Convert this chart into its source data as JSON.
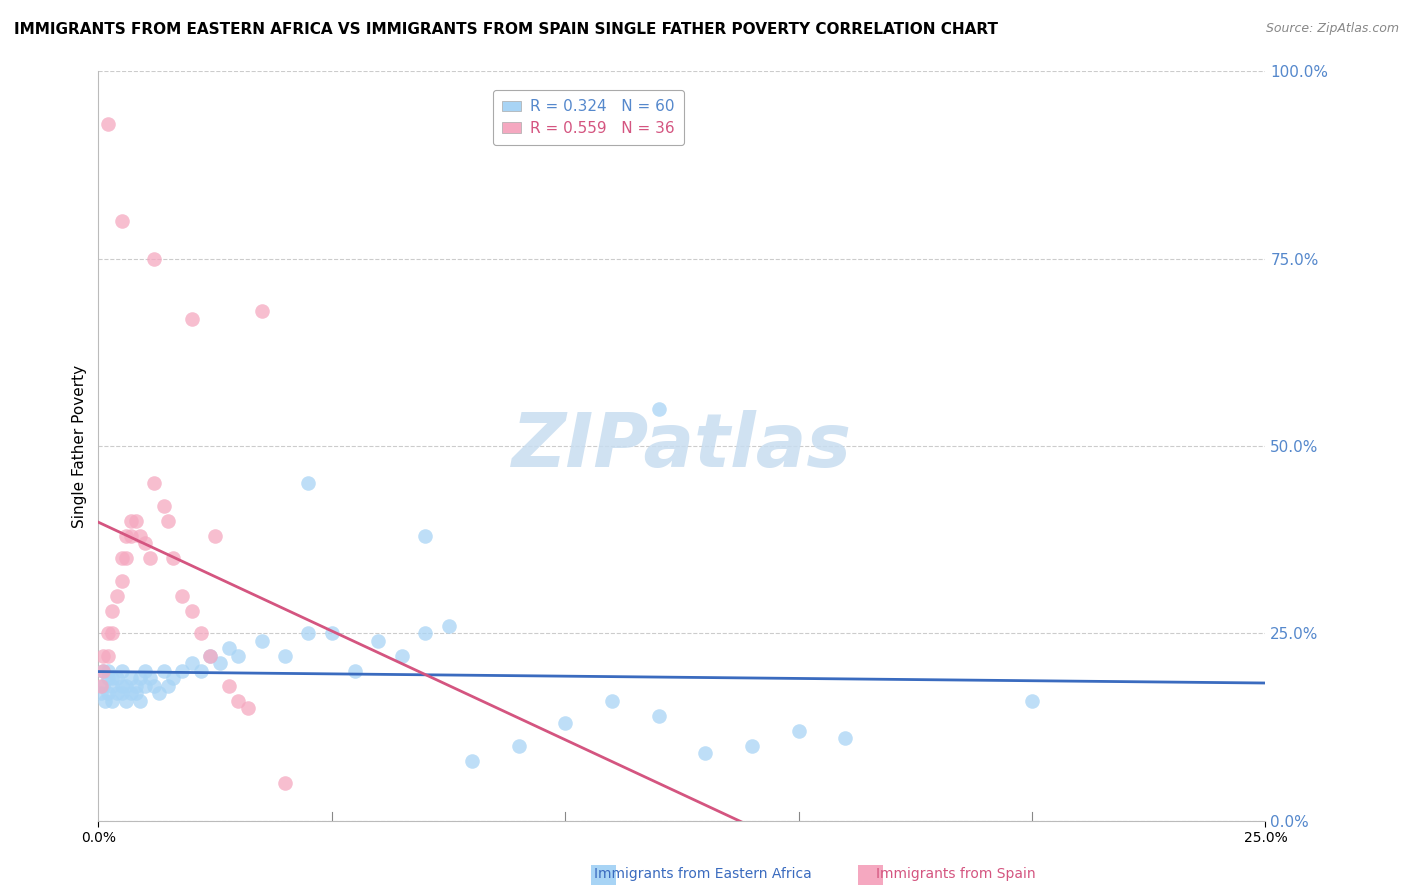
{
  "title": "IMMIGRANTS FROM EASTERN AFRICA VS IMMIGRANTS FROM SPAIN SINGLE FATHER POVERTY CORRELATION CHART",
  "source": "Source: ZipAtlas.com",
  "xlabel_blue": "Immigrants from Eastern Africa",
  "xlabel_pink": "Immigrants from Spain",
  "ylabel": "Single Father Poverty",
  "r_blue": 0.324,
  "n_blue": 60,
  "r_pink": 0.559,
  "n_pink": 36,
  "color_blue": "#a8d4f5",
  "color_pink": "#f5a8c0",
  "line_blue": "#3a6bbf",
  "line_pink": "#d45580",
  "tick_color": "#5588cc",
  "watermark_color": "#c8ddf0",
  "xlim": [
    0.0,
    0.25
  ],
  "ylim": [
    0.0,
    1.0
  ],
  "blue_x": [
    0.0005,
    0.001,
    0.001,
    0.0015,
    0.002,
    0.002,
    0.002,
    0.003,
    0.003,
    0.003,
    0.004,
    0.004,
    0.005,
    0.005,
    0.005,
    0.006,
    0.006,
    0.007,
    0.007,
    0.008,
    0.008,
    0.009,
    0.009,
    0.01,
    0.01,
    0.011,
    0.012,
    0.013,
    0.014,
    0.015,
    0.016,
    0.018,
    0.02,
    0.022,
    0.024,
    0.026,
    0.028,
    0.03,
    0.035,
    0.04,
    0.045,
    0.05,
    0.055,
    0.06,
    0.065,
    0.07,
    0.075,
    0.08,
    0.09,
    0.1,
    0.11,
    0.12,
    0.13,
    0.14,
    0.15,
    0.16,
    0.045,
    0.07,
    0.12,
    0.2
  ],
  "blue_y": [
    0.17,
    0.18,
    0.2,
    0.16,
    0.19,
    0.2,
    0.17,
    0.18,
    0.16,
    0.19,
    0.17,
    0.19,
    0.18,
    0.17,
    0.2,
    0.16,
    0.18,
    0.17,
    0.19,
    0.17,
    0.18,
    0.19,
    0.16,
    0.18,
    0.2,
    0.19,
    0.18,
    0.17,
    0.2,
    0.18,
    0.19,
    0.2,
    0.21,
    0.2,
    0.22,
    0.21,
    0.23,
    0.22,
    0.24,
    0.22,
    0.25,
    0.25,
    0.2,
    0.24,
    0.22,
    0.25,
    0.26,
    0.08,
    0.1,
    0.13,
    0.16,
    0.14,
    0.09,
    0.1,
    0.12,
    0.11,
    0.45,
    0.38,
    0.55,
    0.16
  ],
  "pink_x": [
    0.0005,
    0.001,
    0.001,
    0.002,
    0.002,
    0.003,
    0.003,
    0.004,
    0.005,
    0.005,
    0.006,
    0.006,
    0.007,
    0.007,
    0.008,
    0.009,
    0.01,
    0.011,
    0.012,
    0.014,
    0.015,
    0.016,
    0.018,
    0.02,
    0.022,
    0.024,
    0.025,
    0.028,
    0.03,
    0.032,
    0.002,
    0.005,
    0.012,
    0.02,
    0.035,
    0.04
  ],
  "pink_y": [
    0.18,
    0.2,
    0.22,
    0.22,
    0.25,
    0.25,
    0.28,
    0.3,
    0.32,
    0.35,
    0.35,
    0.38,
    0.38,
    0.4,
    0.4,
    0.38,
    0.37,
    0.35,
    0.45,
    0.42,
    0.4,
    0.35,
    0.3,
    0.28,
    0.25,
    0.22,
    0.38,
    0.18,
    0.16,
    0.15,
    0.93,
    0.8,
    0.75,
    0.67,
    0.68,
    0.05
  ]
}
